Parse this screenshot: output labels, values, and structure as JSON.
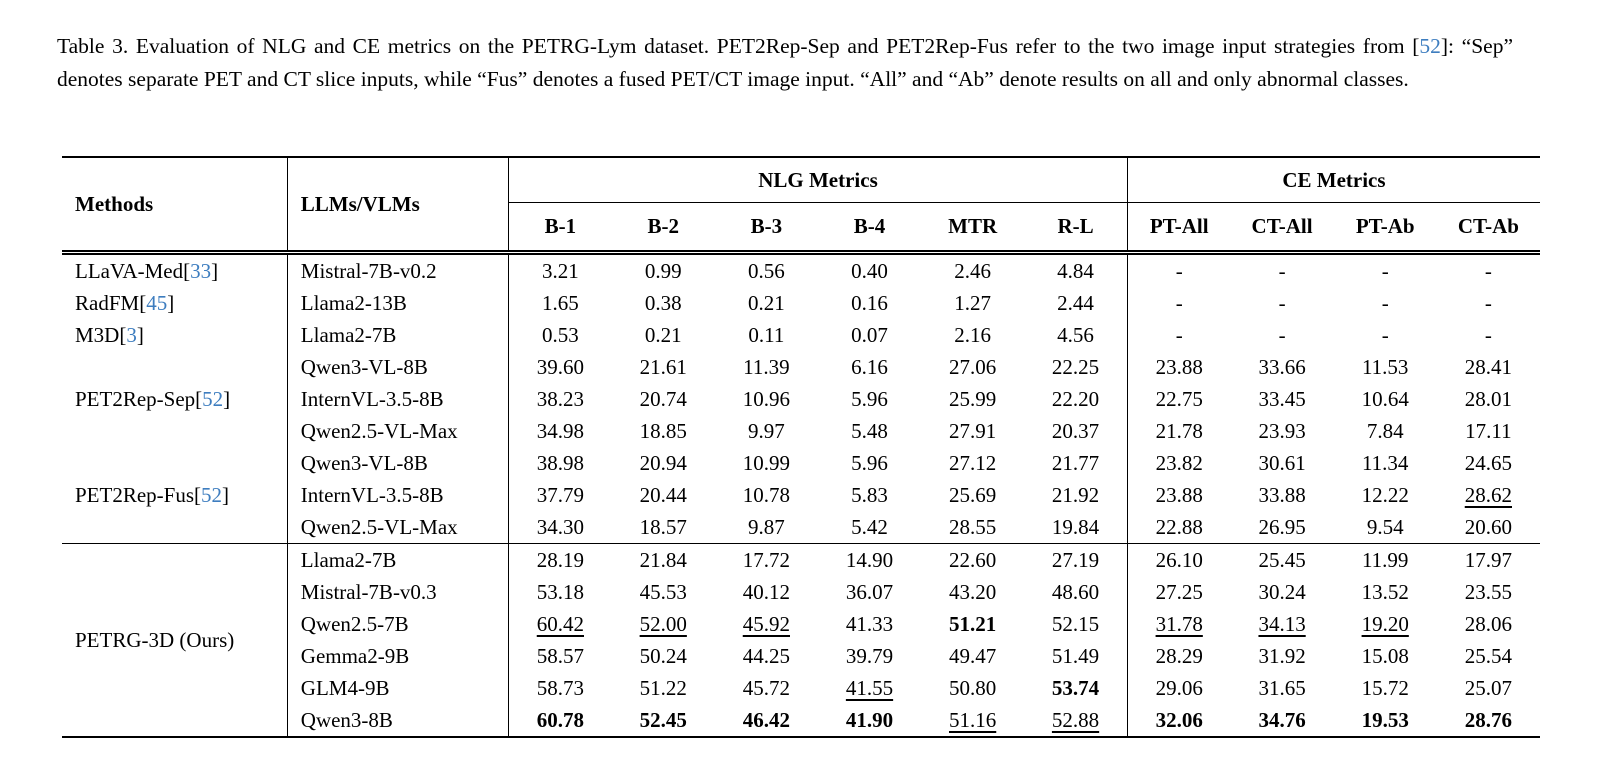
{
  "colors": {
    "citation": "#3d7dbf",
    "text": "#000000",
    "background": "#ffffff"
  },
  "caption": {
    "before_cite": "Table 3. Evaluation of NLG and CE metrics on the PETRG-Lym dataset. PET2Rep-Sep and PET2Rep-Fus refer to the two image input strategies from [",
    "cite": "52",
    "after_cite": "]: “Sep” denotes separate PET and CT slice inputs, while “Fus” denotes a fused PET/CT image input. “All” and “Ab” denote results on all and only abnormal classes."
  },
  "table": {
    "header": {
      "methods": "Methods",
      "llms": "LLMs/VLMs",
      "nlg_group": "NLG Metrics",
      "ce_group": "CE Metrics",
      "nlg_cols": [
        "B-1",
        "B-2",
        "B-3",
        "B-4",
        "MTR",
        "R-L"
      ],
      "ce_cols": [
        "PT-All",
        "CT-All",
        "PT-Ab",
        "CT-Ab"
      ],
      "col_keys": [
        "b1",
        "b2",
        "b3",
        "b4",
        "mtr",
        "rl",
        "pt-all",
        "ct-all",
        "pt-ab",
        "ct-ab"
      ]
    },
    "groups": [
      {
        "label": "LLaVA-Med",
        "cite": "33",
        "rows": [
          {
            "model": "Mistral-7B-v0.2",
            "cells": [
              {
                "t": "3.21"
              },
              {
                "t": "0.99"
              },
              {
                "t": "0.56"
              },
              {
                "t": "0.40"
              },
              {
                "t": "2.46"
              },
              {
                "t": "4.84"
              },
              {
                "t": "-"
              },
              {
                "t": "-"
              },
              {
                "t": "-"
              },
              {
                "t": "-"
              }
            ]
          }
        ]
      },
      {
        "label": "RadFM",
        "cite": "45",
        "rows": [
          {
            "model": "Llama2-13B",
            "cells": [
              {
                "t": "1.65"
              },
              {
                "t": "0.38"
              },
              {
                "t": "0.21"
              },
              {
                "t": "0.16"
              },
              {
                "t": "1.27"
              },
              {
                "t": "2.44"
              },
              {
                "t": "-"
              },
              {
                "t": "-"
              },
              {
                "t": "-"
              },
              {
                "t": "-"
              }
            ]
          }
        ]
      },
      {
        "label": "M3D",
        "cite": "3",
        "rows": [
          {
            "model": "Llama2-7B",
            "cells": [
              {
                "t": "0.53"
              },
              {
                "t": "0.21"
              },
              {
                "t": "0.11"
              },
              {
                "t": "0.07"
              },
              {
                "t": "2.16"
              },
              {
                "t": "4.56"
              },
              {
                "t": "-"
              },
              {
                "t": "-"
              },
              {
                "t": "-"
              },
              {
                "t": "-"
              }
            ]
          }
        ]
      },
      {
        "label": "PET2Rep-Sep",
        "cite": "52",
        "rows": [
          {
            "model": "Qwen3-VL-8B",
            "cells": [
              {
                "t": "39.60"
              },
              {
                "t": "21.61"
              },
              {
                "t": "11.39"
              },
              {
                "t": "6.16"
              },
              {
                "t": "27.06"
              },
              {
                "t": "22.25"
              },
              {
                "t": "23.88"
              },
              {
                "t": "33.66"
              },
              {
                "t": "11.53"
              },
              {
                "t": "28.41"
              }
            ]
          },
          {
            "model": "InternVL-3.5-8B",
            "cells": [
              {
                "t": "38.23"
              },
              {
                "t": "20.74"
              },
              {
                "t": "10.96"
              },
              {
                "t": "5.96"
              },
              {
                "t": "25.99"
              },
              {
                "t": "22.20"
              },
              {
                "t": "22.75"
              },
              {
                "t": "33.45"
              },
              {
                "t": "10.64"
              },
              {
                "t": "28.01"
              }
            ]
          },
          {
            "model": "Qwen2.5-VL-Max",
            "cells": [
              {
                "t": "34.98"
              },
              {
                "t": "18.85"
              },
              {
                "t": "9.97"
              },
              {
                "t": "5.48"
              },
              {
                "t": "27.91"
              },
              {
                "t": "20.37"
              },
              {
                "t": "21.78"
              },
              {
                "t": "23.93"
              },
              {
                "t": "7.84"
              },
              {
                "t": "17.11"
              }
            ]
          }
        ]
      },
      {
        "label": "PET2Rep-Fus",
        "cite": "52",
        "rows": [
          {
            "model": "Qwen3-VL-8B",
            "cells": [
              {
                "t": "38.98"
              },
              {
                "t": "20.94"
              },
              {
                "t": "10.99"
              },
              {
                "t": "5.96"
              },
              {
                "t": "27.12"
              },
              {
                "t": "21.77"
              },
              {
                "t": "23.82"
              },
              {
                "t": "30.61"
              },
              {
                "t": "11.34"
              },
              {
                "t": "24.65"
              }
            ]
          },
          {
            "model": "InternVL-3.5-8B",
            "cells": [
              {
                "t": "37.79"
              },
              {
                "t": "20.44"
              },
              {
                "t": "10.78"
              },
              {
                "t": "5.83"
              },
              {
                "t": "25.69"
              },
              {
                "t": "21.92"
              },
              {
                "t": "23.88"
              },
              {
                "t": "33.88"
              },
              {
                "t": "12.22"
              },
              {
                "t": "28.62",
                "u": true
              }
            ]
          },
          {
            "model": "Qwen2.5-VL-Max",
            "cells": [
              {
                "t": "34.30"
              },
              {
                "t": "18.57"
              },
              {
                "t": "9.87"
              },
              {
                "t": "5.42"
              },
              {
                "t": "28.55"
              },
              {
                "t": "19.84"
              },
              {
                "t": "22.88"
              },
              {
                "t": "26.95"
              },
              {
                "t": "9.54"
              },
              {
                "t": "20.60"
              }
            ]
          }
        ]
      },
      {
        "label": "PETRG-3D (Ours)",
        "cite": null,
        "rule_before": true,
        "rows": [
          {
            "model": "Llama2-7B",
            "cells": [
              {
                "t": "28.19"
              },
              {
                "t": "21.84"
              },
              {
                "t": "17.72"
              },
              {
                "t": "14.90"
              },
              {
                "t": "22.60"
              },
              {
                "t": "27.19"
              },
              {
                "t": "26.10"
              },
              {
                "t": "25.45"
              },
              {
                "t": "11.99"
              },
              {
                "t": "17.97"
              }
            ]
          },
          {
            "model": "Mistral-7B-v0.3",
            "cells": [
              {
                "t": "53.18"
              },
              {
                "t": "45.53"
              },
              {
                "t": "40.12"
              },
              {
                "t": "36.07"
              },
              {
                "t": "43.20"
              },
              {
                "t": "48.60"
              },
              {
                "t": "27.25"
              },
              {
                "t": "30.24"
              },
              {
                "t": "13.52"
              },
              {
                "t": "23.55"
              }
            ]
          },
          {
            "model": "Qwen2.5-7B",
            "cells": [
              {
                "t": "60.42",
                "u": true
              },
              {
                "t": "52.00",
                "u": true
              },
              {
                "t": "45.92",
                "u": true
              },
              {
                "t": "41.33"
              },
              {
                "t": "51.21",
                "b": true
              },
              {
                "t": "52.15"
              },
              {
                "t": "31.78",
                "u": true
              },
              {
                "t": "34.13",
                "u": true
              },
              {
                "t": "19.20",
                "u": true
              },
              {
                "t": "28.06"
              }
            ]
          },
          {
            "model": "Gemma2-9B",
            "cells": [
              {
                "t": "58.57"
              },
              {
                "t": "50.24"
              },
              {
                "t": "44.25"
              },
              {
                "t": "39.79"
              },
              {
                "t": "49.47"
              },
              {
                "t": "51.49"
              },
              {
                "t": "28.29"
              },
              {
                "t": "31.92"
              },
              {
                "t": "15.08"
              },
              {
                "t": "25.54"
              }
            ]
          },
          {
            "model": "GLM4-9B",
            "cells": [
              {
                "t": "58.73"
              },
              {
                "t": "51.22"
              },
              {
                "t": "45.72"
              },
              {
                "t": "41.55",
                "u": true
              },
              {
                "t": "50.80"
              },
              {
                "t": "53.74",
                "b": true
              },
              {
                "t": "29.06"
              },
              {
                "t": "31.65"
              },
              {
                "t": "15.72"
              },
              {
                "t": "25.07"
              }
            ]
          },
          {
            "model": "Qwen3-8B",
            "cells": [
              {
                "t": "60.78",
                "b": true
              },
              {
                "t": "52.45",
                "b": true
              },
              {
                "t": "46.42",
                "b": true
              },
              {
                "t": "41.90",
                "b": true
              },
              {
                "t": "51.16",
                "u": true
              },
              {
                "t": "52.88",
                "u": true
              },
              {
                "t": "32.06",
                "b": true
              },
              {
                "t": "34.76",
                "b": true
              },
              {
                "t": "19.53",
                "b": true
              },
              {
                "t": "28.76",
                "b": true
              }
            ]
          }
        ]
      }
    ]
  }
}
